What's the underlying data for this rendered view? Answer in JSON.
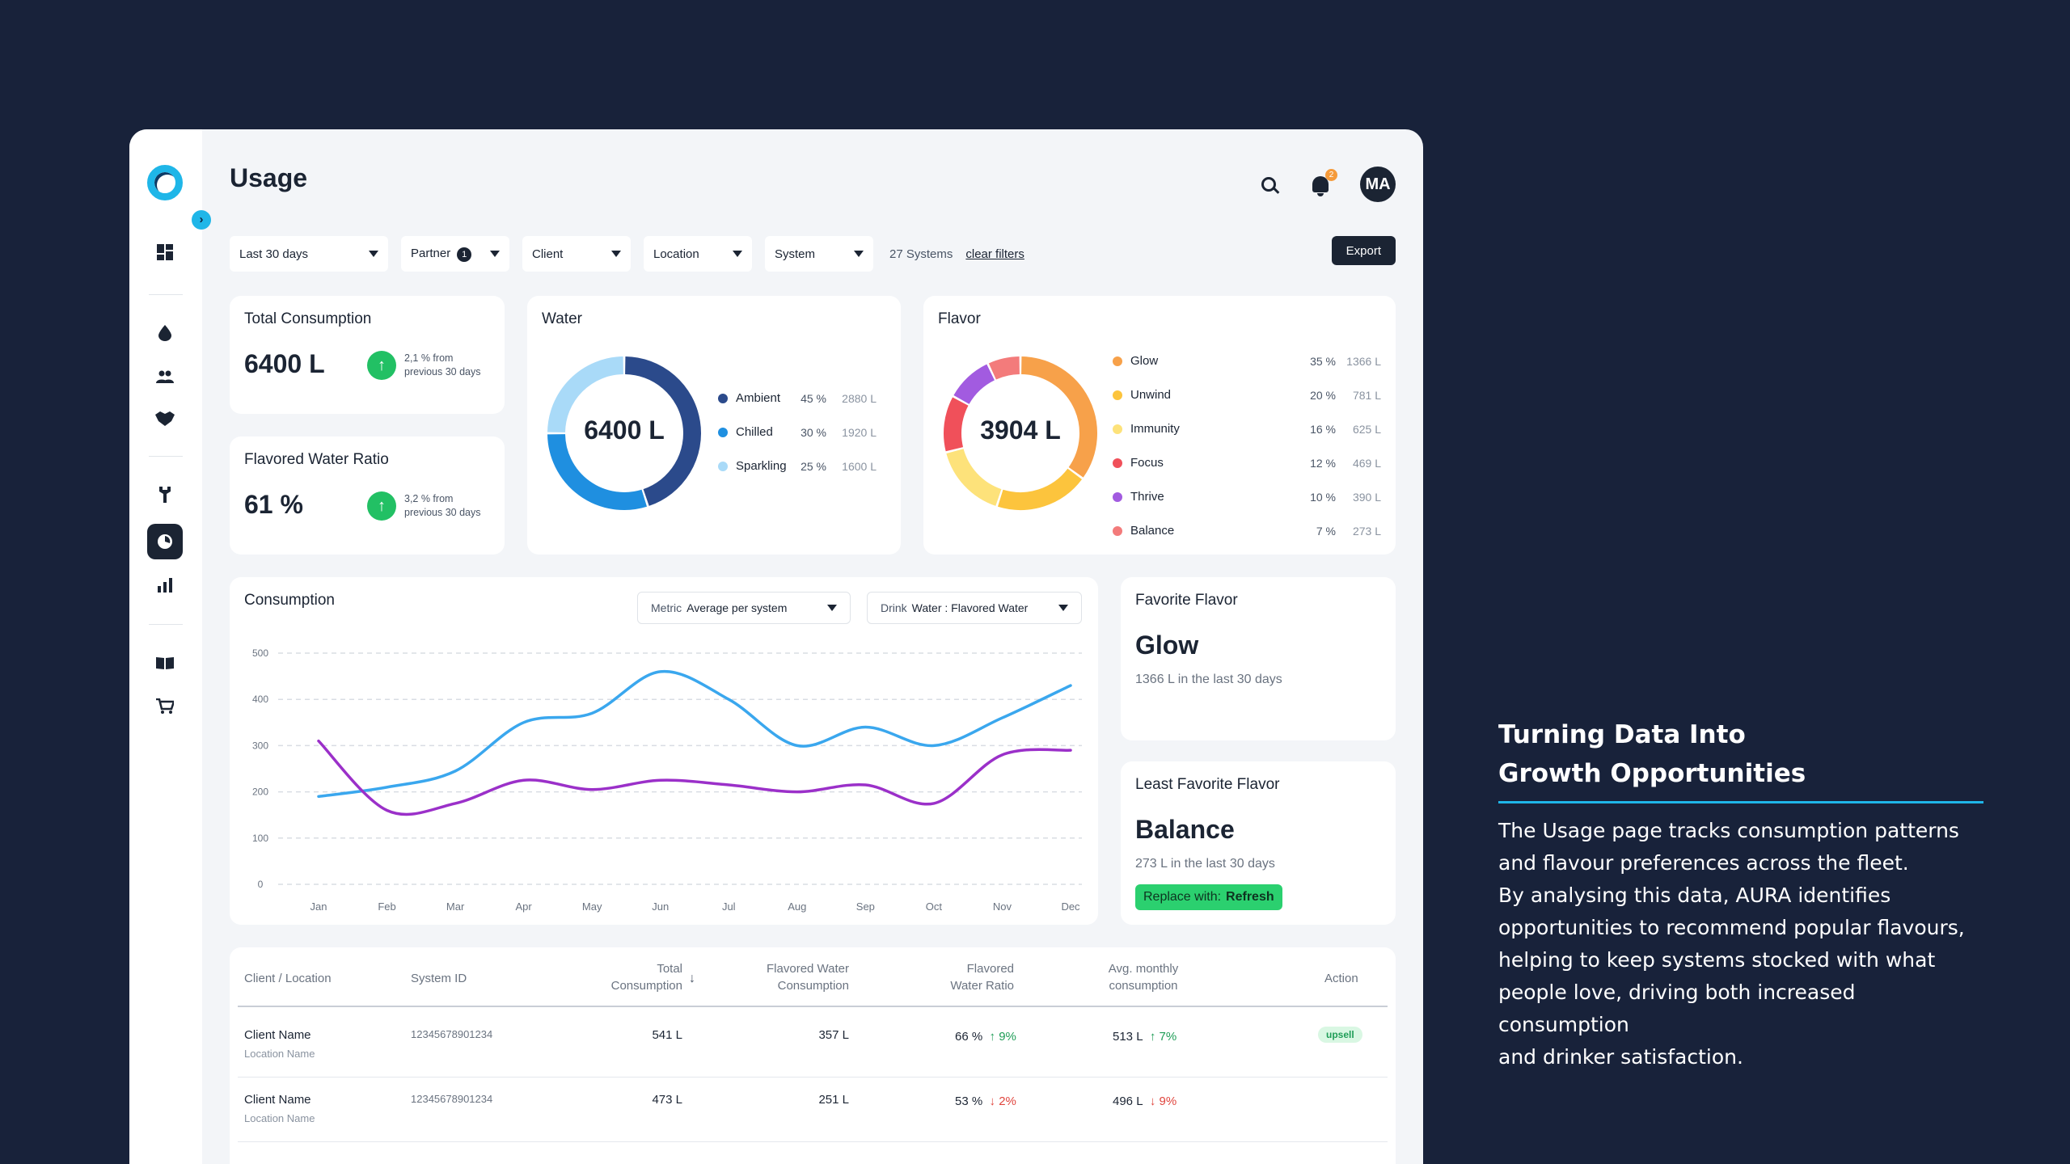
{
  "header": {
    "title": "Usage",
    "notification_count": "2",
    "avatar_initials": "MA"
  },
  "sidebar": {
    "icons": [
      "dashboard-icon",
      "water-drop-icon",
      "users-icon",
      "handshake-icon",
      "wrench-icon",
      "usage-icon",
      "analytics-icon",
      "book-icon",
      "cart-icon"
    ],
    "active": "usage-icon"
  },
  "filters": {
    "date": "Last 30 days",
    "partner": "Partner",
    "partner_badge": "1",
    "client": "Client",
    "location": "Location",
    "system": "System",
    "systems_count": "27 Systems",
    "clear": "clear filters",
    "export": "Export"
  },
  "total_consumption": {
    "title": "Total Consumption",
    "value": "6400 L",
    "trend": "2,1 % from previous 30 days"
  },
  "flavored_ratio": {
    "title": "Flavored Water Ratio",
    "value": "61 %",
    "trend": "3,2 % from previous 30 days"
  },
  "water": {
    "title": "Water",
    "center": "6400 L",
    "items": [
      {
        "name": "Ambient",
        "pct": "45 %",
        "value": "2880 L",
        "color": "#2b4a8b",
        "share": 45
      },
      {
        "name": "Chilled",
        "pct": "30 %",
        "value": "1920 L",
        "color": "#1f8fe0",
        "share": 30
      },
      {
        "name": "Sparkling",
        "pct": "25 %",
        "value": "1600 L",
        "color": "#a9daf8",
        "share": 25
      }
    ]
  },
  "flavor": {
    "title": "Flavor",
    "center": "3904 L",
    "items": [
      {
        "name": "Glow",
        "pct": "35 %",
        "value": "1366 L",
        "color": "#f7a14a",
        "share": 35
      },
      {
        "name": "Unwind",
        "pct": "20 %",
        "value": "781 L",
        "color": "#fcc43d",
        "share": 20
      },
      {
        "name": "Immunity",
        "pct": "16 %",
        "value": "625 L",
        "color": "#fde27a",
        "share": 16
      },
      {
        "name": "Focus",
        "pct": "12 %",
        "value": "469 L",
        "color": "#f0505a",
        "share": 12
      },
      {
        "name": "Thrive",
        "pct": "10 %",
        "value": "390 L",
        "color": "#a25be0",
        "share": 10
      },
      {
        "name": "Balance",
        "pct": "7  %",
        "value": "273 L",
        "color": "#f37b7b",
        "share": 7
      }
    ]
  },
  "consumption": {
    "title": "Consumption",
    "metric_label": "Metric",
    "metric_value": "Average per system",
    "drink_label": "Drink",
    "drink_value": "Water : Flavored Water"
  },
  "chart_data": {
    "type": "line",
    "title": "Consumption",
    "categories": [
      "Jan",
      "Feb",
      "Mar",
      "Apr",
      "May",
      "Jun",
      "Jul",
      "Aug",
      "Sep",
      "Oct",
      "Nov",
      "Dec"
    ],
    "y_ticks": [
      "500",
      "400",
      "300",
      "200",
      "100",
      "0"
    ],
    "ylim": [
      0,
      500
    ],
    "grid": true,
    "series": [
      {
        "values": [
          190,
          210,
          245,
          350,
          370,
          460,
          400,
          300,
          340,
          300,
          360,
          430
        ],
        "color": "#3aa7ee"
      },
      {
        "values": [
          310,
          160,
          175,
          225,
          205,
          225,
          215,
          200,
          215,
          175,
          280,
          290
        ],
        "color": "#9b30c9"
      }
    ]
  },
  "favorite": {
    "title": "Favorite Flavor",
    "name": "Glow",
    "sub": "1366 L in the last 30 days"
  },
  "least_favorite": {
    "title": "Least Favorite Flavor",
    "name": "Balance",
    "sub": "273 L in the last 30 days",
    "replace_label": "Replace with:",
    "replace_value": "Refresh"
  },
  "table": {
    "headers": {
      "client": "Client / Location",
      "system": "System ID",
      "total_1": "Total",
      "total_2": "Consumption",
      "flavored_1": "Flavored Water",
      "flavored_2": "Consumption",
      "ratio_1": "Flavored",
      "ratio_2": "Water Ratio",
      "avg_1": "Avg. monthly",
      "avg_2": "consumption",
      "action": "Action"
    },
    "rows": [
      {
        "client": "Client Name",
        "location": "Location Name",
        "id": "12345678901234",
        "total": "541 L",
        "flavored": "357 L",
        "ratio": "66 %",
        "ratio_trend": "↑ 9%",
        "ratio_dir": "up",
        "avg": "513 L",
        "avg_trend": "↑ 7%",
        "avg_dir": "up",
        "action": "upsell"
      },
      {
        "client": "Client Name",
        "location": "Location Name",
        "id": "12345678901234",
        "total": "473 L",
        "flavored": "251 L",
        "ratio": "53 %",
        "ratio_trend": "↓ 2%",
        "ratio_dir": "down",
        "avg": "496 L",
        "avg_trend": "↓ 9%",
        "avg_dir": "down",
        "action": ""
      }
    ]
  },
  "marketing": {
    "heading_1": "Turning Data Into",
    "heading_2": "Growth Opportunities",
    "body_1": "The Usage page tracks consumption patterns",
    "body_2": "and flavour preferences across the fleet.",
    "body_3": "By analysing this data, AURA identifies",
    "body_4": "opportunities to recommend popular flavours,",
    "body_5": "helping to keep systems stocked with what",
    "body_6": "people love, driving both increased consumption",
    "body_7": "and drinker satisfaction."
  }
}
